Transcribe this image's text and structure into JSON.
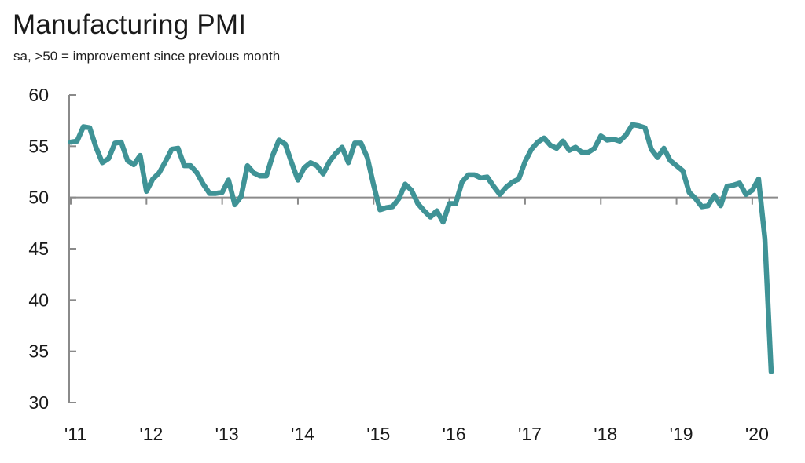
{
  "title": "Manufacturing PMI",
  "subtitle": "sa, >50 = improvement since previous month",
  "colors": {
    "series": "#3f9396",
    "axis": "#8a8a8a",
    "text": "#1a1a1a"
  },
  "chart_data": {
    "type": "line",
    "title": "Manufacturing PMI",
    "subtitle": "sa, >50 = improvement since previous month",
    "xlabel": "",
    "ylabel": "",
    "ylim": [
      30,
      60
    ],
    "yticks": [
      30,
      35,
      40,
      45,
      50,
      55,
      60
    ],
    "reference_line": 50,
    "grid": false,
    "x_start": 2011.0,
    "x_end": 2020.3333,
    "xticks": [
      {
        "label": "'11",
        "year": 2011
      },
      {
        "label": "'12",
        "year": 2012
      },
      {
        "label": "'13",
        "year": 2013
      },
      {
        "label": "'14",
        "year": 2014
      },
      {
        "label": "'15",
        "year": 2015
      },
      {
        "label": "'16",
        "year": 2016
      },
      {
        "label": "'17",
        "year": 2017
      },
      {
        "label": "'18",
        "year": 2018
      },
      {
        "label": "'19",
        "year": 2019
      },
      {
        "label": "'20",
        "year": 2020
      }
    ],
    "series": [
      {
        "name": "Manufacturing PMI",
        "start": "2011-01",
        "frequency": "monthly",
        "values": [
          55.4,
          55.5,
          56.9,
          56.8,
          54.9,
          53.4,
          53.8,
          55.3,
          55.4,
          53.6,
          53.2,
          54.1,
          50.6,
          51.8,
          52.4,
          53.5,
          54.7,
          54.8,
          53.1,
          53.1,
          52.4,
          51.3,
          50.4,
          50.4,
          50.5,
          51.7,
          49.3,
          50.1,
          53.1,
          52.4,
          52.1,
          52.1,
          54.1,
          55.6,
          55.2,
          53.4,
          51.7,
          52.9,
          53.4,
          53.1,
          52.3,
          53.5,
          54.3,
          54.9,
          53.4,
          55.3,
          55.3,
          53.9,
          51.2,
          48.8,
          49.0,
          49.1,
          49.9,
          51.3,
          50.7,
          49.4,
          48.7,
          48.1,
          48.7,
          47.6,
          49.4,
          49.4,
          51.5,
          52.2,
          52.2,
          51.9,
          52.0,
          51.1,
          50.3,
          51.0,
          51.5,
          51.8,
          53.5,
          54.7,
          55.4,
          55.8,
          55.1,
          54.8,
          55.5,
          54.6,
          54.9,
          54.4,
          54.4,
          54.8,
          56.0,
          55.6,
          55.7,
          55.5,
          56.1,
          57.1,
          57.0,
          56.8,
          54.7,
          53.9,
          54.8,
          53.6,
          53.1,
          52.6,
          50.5,
          49.9,
          49.1,
          49.2,
          50.2,
          49.2,
          51.1,
          51.2,
          51.4,
          50.3,
          50.7,
          51.8,
          46.0,
          33.0
        ]
      }
    ]
  }
}
